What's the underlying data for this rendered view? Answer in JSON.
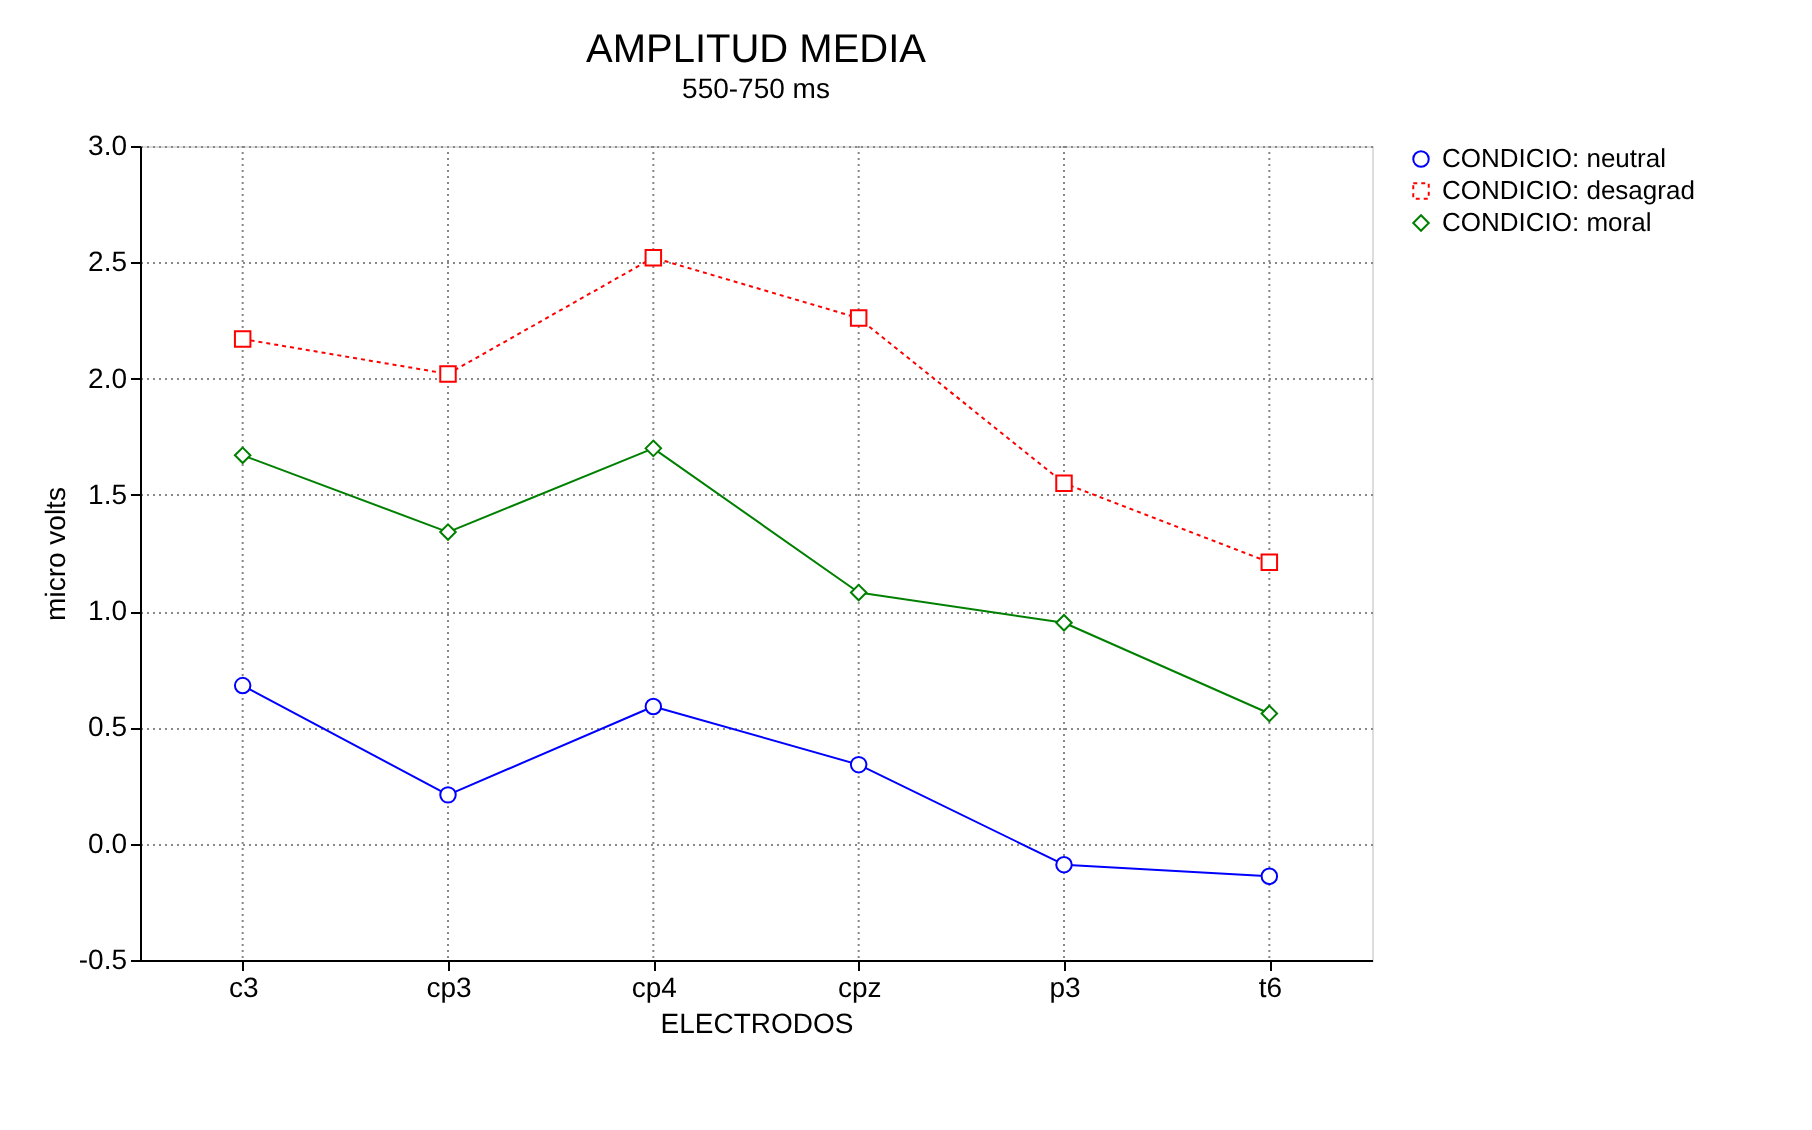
{
  "chart_data": {
    "type": "line",
    "title": "AMPLITUD MEDIA",
    "subtitle": "550-750 ms",
    "xlabel": "ELECTRODOS",
    "ylabel": "micro volts",
    "categories": [
      "c3",
      "cp3",
      "cp4",
      "cpz",
      "p3",
      "t6"
    ],
    "series": [
      {
        "name": "CONDICIO: neutral",
        "color": "#0000ff",
        "marker": "circle",
        "line_style": "solid",
        "values": [
          0.68,
          0.21,
          0.59,
          0.34,
          -0.09,
          -0.14
        ]
      },
      {
        "name": "CONDICIO: desagrad",
        "color": "#ff0000",
        "marker": "square",
        "line_style": "dotted",
        "values": [
          2.17,
          2.02,
          2.52,
          2.26,
          1.55,
          1.21
        ]
      },
      {
        "name": "CONDICIO: moral",
        "color": "#008000",
        "marker": "diamond",
        "line_style": "solid",
        "values": [
          1.67,
          1.34,
          1.7,
          1.08,
          0.95,
          0.56
        ]
      }
    ],
    "ylim": [
      -0.5,
      3.0
    ],
    "yticks": [
      {
        "value": -0.5,
        "label": "-0.5"
      },
      {
        "value": 0,
        "label": "0.0"
      },
      {
        "value": 0.5,
        "label": "0.5"
      },
      {
        "value": 1,
        "label": "1.0"
      },
      {
        "value": 1.5,
        "label": "1.5"
      },
      {
        "value": 2,
        "label": "2.0"
      },
      {
        "value": 2.5,
        "label": "2.5"
      },
      {
        "value": 3,
        "label": "3.0"
      }
    ],
    "grid": true,
    "legend": "right"
  }
}
